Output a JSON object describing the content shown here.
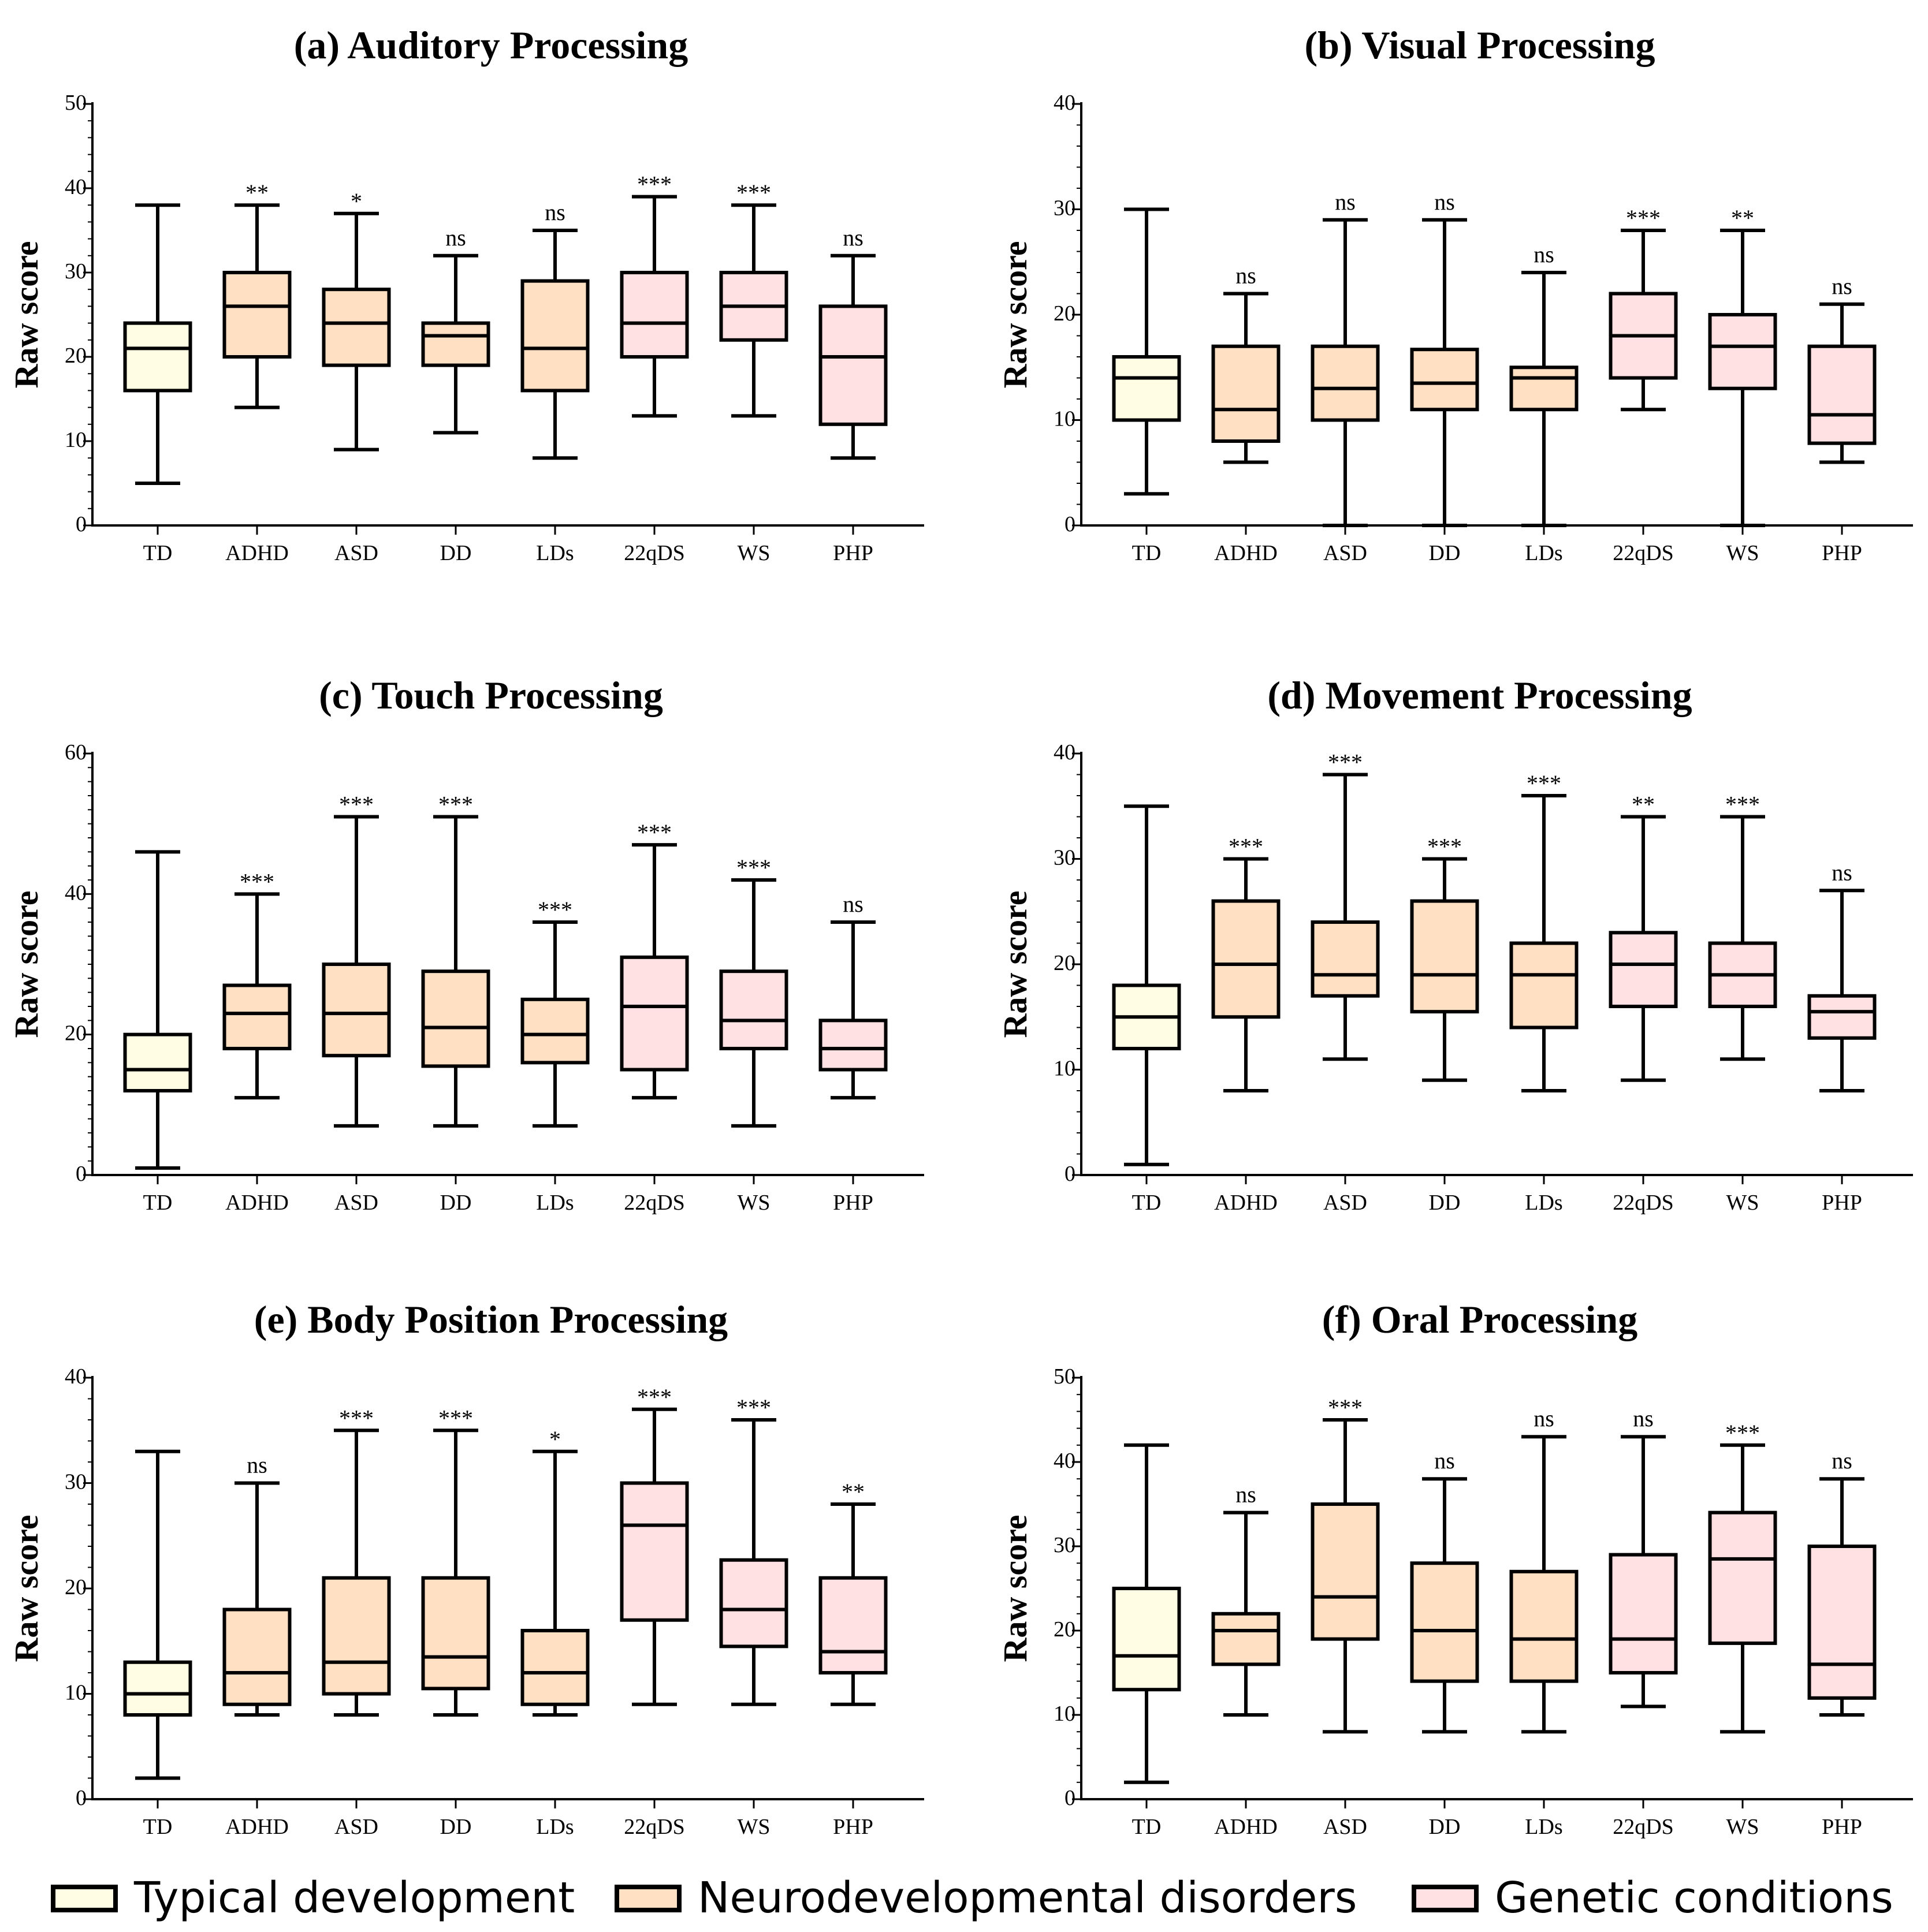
{
  "chart_data": [
    {
      "type": "box",
      "title": "(a) Auditory Processing",
      "ylabel": "Raw score",
      "ylim": [
        0,
        50
      ],
      "yticks": [
        0,
        10,
        20,
        30,
        40,
        50
      ],
      "categories": [
        "TD",
        "ADHD",
        "ASD",
        "DD",
        "LDs",
        "22qDS",
        "WS",
        "PHP"
      ],
      "groups": [
        "typical",
        "neuro",
        "neuro",
        "neuro",
        "neuro",
        "genetic",
        "genetic",
        "genetic"
      ],
      "boxes": [
        [
          5,
          16,
          21,
          24,
          38
        ],
        [
          14,
          20,
          26,
          30,
          38
        ],
        [
          9,
          19,
          24,
          28,
          37
        ],
        [
          11,
          19,
          22.5,
          24,
          32
        ],
        [
          8,
          16,
          21,
          29,
          35
        ],
        [
          13,
          20,
          24,
          30,
          39
        ],
        [
          13,
          22,
          26,
          30,
          38
        ],
        [
          8,
          12,
          20,
          26,
          32
        ]
      ],
      "significance": [
        "",
        "**",
        "*",
        "ns",
        "ns",
        "***",
        "***",
        "ns"
      ]
    },
    {
      "type": "box",
      "title": "(b) Visual Processing",
      "ylabel": "Raw score",
      "ylim": [
        0,
        40
      ],
      "yticks": [
        0,
        10,
        20,
        30,
        40
      ],
      "categories": [
        "TD",
        "ADHD",
        "ASD",
        "DD",
        "LDs",
        "22qDS",
        "WS",
        "PHP"
      ],
      "groups": [
        "typical",
        "neuro",
        "neuro",
        "neuro",
        "neuro",
        "genetic",
        "genetic",
        "genetic"
      ],
      "boxes": [
        [
          3,
          10,
          14,
          16,
          30
        ],
        [
          6,
          8,
          11,
          17,
          22
        ],
        [
          0,
          10,
          13,
          17,
          29
        ],
        [
          0,
          11,
          13.5,
          16.7,
          29
        ],
        [
          0,
          11,
          14,
          15,
          24
        ],
        [
          11,
          14,
          18,
          22,
          28
        ],
        [
          0,
          13,
          17,
          20,
          28
        ],
        [
          6,
          7.8,
          10.5,
          17,
          21
        ]
      ],
      "significance": [
        "",
        "ns",
        "ns",
        "ns",
        "ns",
        "***",
        "**",
        "ns"
      ]
    },
    {
      "type": "box",
      "title": "(c) Touch Processing",
      "ylabel": "Raw score",
      "ylim": [
        0,
        60
      ],
      "yticks": [
        0,
        20,
        40,
        60
      ],
      "categories": [
        "TD",
        "ADHD",
        "ASD",
        "DD",
        "LDs",
        "22qDS",
        "WS",
        "PHP"
      ],
      "groups": [
        "typical",
        "neuro",
        "neuro",
        "neuro",
        "neuro",
        "genetic",
        "genetic",
        "genetic"
      ],
      "boxes": [
        [
          1,
          12,
          15,
          20,
          46
        ],
        [
          11,
          18,
          23,
          27,
          40
        ],
        [
          7,
          17,
          23,
          30,
          51
        ],
        [
          7,
          15.5,
          21,
          29,
          51
        ],
        [
          7,
          16,
          20,
          25,
          36
        ],
        [
          11,
          15,
          24,
          31,
          47
        ],
        [
          7,
          18,
          22,
          29,
          42
        ],
        [
          11,
          15,
          18,
          22,
          36
        ]
      ],
      "significance": [
        "",
        "***",
        "***",
        "***",
        "***",
        "***",
        "***",
        "ns"
      ]
    },
    {
      "type": "box",
      "title": "(d) Movement Processing",
      "ylabel": "Raw score",
      "ylim": [
        0,
        40
      ],
      "yticks": [
        0,
        10,
        20,
        30,
        40
      ],
      "categories": [
        "TD",
        "ADHD",
        "ASD",
        "DD",
        "LDs",
        "22qDS",
        "WS",
        "PHP"
      ],
      "groups": [
        "typical",
        "neuro",
        "neuro",
        "neuro",
        "neuro",
        "genetic",
        "genetic",
        "genetic"
      ],
      "boxes": [
        [
          1,
          12,
          15,
          18,
          35
        ],
        [
          8,
          15,
          20,
          26,
          30
        ],
        [
          11,
          17,
          19,
          24,
          38
        ],
        [
          9,
          15.5,
          19,
          26,
          30
        ],
        [
          8,
          14,
          19,
          22,
          36
        ],
        [
          9,
          16,
          20,
          23,
          34
        ],
        [
          11,
          16,
          19,
          22,
          34
        ],
        [
          8,
          13,
          15.5,
          17,
          27
        ]
      ],
      "significance": [
        "",
        "***",
        "***",
        "***",
        "***",
        "**",
        "***",
        "ns"
      ]
    },
    {
      "type": "box",
      "title": "(e) Body Position Processing",
      "ylabel": "Raw score",
      "ylim": [
        0,
        40
      ],
      "yticks": [
        0,
        10,
        20,
        30,
        40
      ],
      "categories": [
        "TD",
        "ADHD",
        "ASD",
        "DD",
        "LDs",
        "22qDS",
        "WS",
        "PHP"
      ],
      "groups": [
        "typical",
        "neuro",
        "neuro",
        "neuro",
        "neuro",
        "genetic",
        "genetic",
        "genetic"
      ],
      "boxes": [
        [
          2,
          8,
          10,
          13,
          33
        ],
        [
          8,
          9,
          12,
          18,
          30
        ],
        [
          8,
          10,
          13,
          21,
          35
        ],
        [
          8,
          10.5,
          13.5,
          21,
          35
        ],
        [
          8,
          9,
          12,
          16,
          33
        ],
        [
          9,
          17,
          26,
          30,
          37
        ],
        [
          9,
          14.5,
          18,
          22.7,
          36
        ],
        [
          9,
          12,
          14,
          21,
          28
        ]
      ],
      "significance": [
        "",
        "ns",
        "***",
        "***",
        "*",
        "***",
        "***",
        "**"
      ]
    },
    {
      "type": "box",
      "title": "(f) Oral Processing",
      "ylabel": "Raw score",
      "ylim": [
        0,
        50
      ],
      "yticks": [
        0,
        10,
        20,
        30,
        40,
        50
      ],
      "categories": [
        "TD",
        "ADHD",
        "ASD",
        "DD",
        "LDs",
        "22qDS",
        "WS",
        "PHP"
      ],
      "groups": [
        "typical",
        "neuro",
        "neuro",
        "neuro",
        "neuro",
        "genetic",
        "genetic",
        "genetic"
      ],
      "boxes": [
        [
          2,
          13,
          17,
          25,
          42
        ],
        [
          10,
          16,
          20,
          22,
          34
        ],
        [
          8,
          19,
          24,
          35,
          45
        ],
        [
          8,
          14,
          20,
          28,
          38
        ],
        [
          8,
          14,
          19,
          27,
          43
        ],
        [
          11,
          15,
          19,
          29,
          43
        ],
        [
          8,
          18.5,
          28.5,
          34,
          42
        ],
        [
          10,
          12,
          16,
          30,
          38
        ]
      ],
      "significance": [
        "",
        "ns",
        "***",
        "ns",
        "ns",
        "ns",
        "***",
        "ns"
      ]
    }
  ],
  "legend": [
    {
      "key": "typical",
      "label": "Typical development",
      "color": "#FFFDE3"
    },
    {
      "key": "neuro",
      "label": "Neurodevelopmental disorders",
      "color": "#FFE0C2"
    },
    {
      "key": "genetic",
      "label": "Genetic conditions",
      "color": "#FFE1E4"
    }
  ]
}
